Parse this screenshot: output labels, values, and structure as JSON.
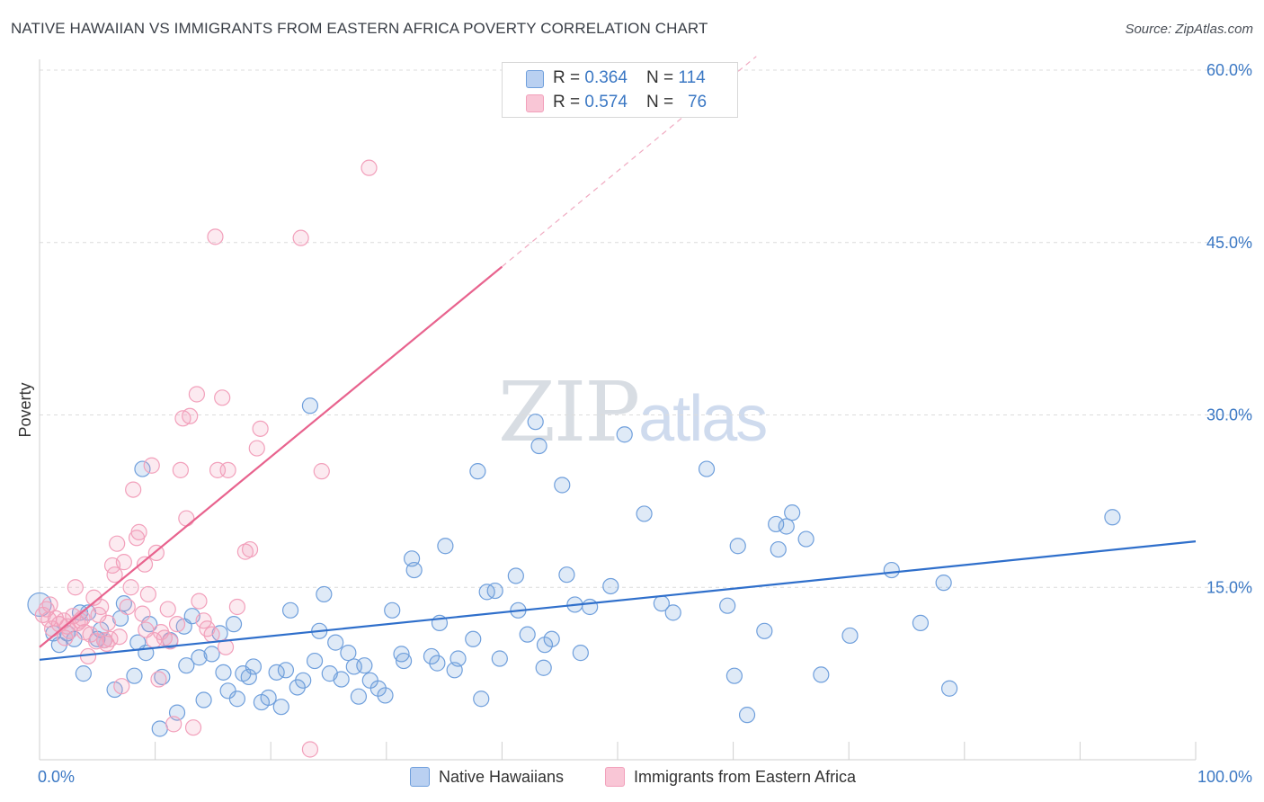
{
  "title": "NATIVE HAWAIIAN VS IMMIGRANTS FROM EASTERN AFRICA POVERTY CORRELATION CHART",
  "source": "Source: ZipAtlas.com",
  "watermark": {
    "zip": "ZIP",
    "atlas": "atlas"
  },
  "legend": {
    "rows": [
      {
        "r_label": "R = ",
        "r_value": "0.364",
        "n_label": "N = ",
        "n_value": "114"
      },
      {
        "r_label": "R = ",
        "r_value": "0.574",
        "n_label": "N = ",
        "n_value": "76"
      }
    ]
  },
  "chart_data": {
    "type": "scatter",
    "title": "NATIVE HAWAIIAN VS IMMIGRANTS FROM EASTERN AFRICA POVERTY CORRELATION CHART",
    "xlabel": "",
    "ylabel": "Poverty",
    "xlim": [
      0,
      100
    ],
    "ylim": [
      0,
      60
    ],
    "x_tick_labels": [
      "0.0%",
      "100.0%"
    ],
    "y_ticks": [
      15,
      30,
      45,
      60
    ],
    "y_tick_labels": [
      "15.0%",
      "30.0%",
      "45.0%",
      "60.0%"
    ],
    "legend_position": "bottom",
    "series": [
      {
        "name": "Native Hawaiians",
        "color": "#6f9fdc",
        "line_color": "#2f6fcb",
        "r": 0.364,
        "n": 114,
        "trend": {
          "x0": 0,
          "y0": 8.7,
          "x1": 100,
          "y1": 19.0
        },
        "points": [
          [
            0.0,
            13.5
          ],
          [
            1.2,
            11
          ],
          [
            1.7,
            10
          ],
          [
            2.4,
            11
          ],
          [
            3,
            10.5
          ],
          [
            3.5,
            12.8
          ],
          [
            3.8,
            7.5
          ],
          [
            4.2,
            12.8
          ],
          [
            5,
            10.5
          ],
          [
            5.3,
            11.3
          ],
          [
            5.6,
            10.4
          ],
          [
            6.5,
            6.1
          ],
          [
            7,
            12.3
          ],
          [
            7.3,
            13.6
          ],
          [
            8.2,
            7.3
          ],
          [
            8.5,
            10.2
          ],
          [
            8.9,
            25.3
          ],
          [
            9.2,
            9.3
          ],
          [
            9.5,
            11.8
          ],
          [
            10.4,
            2.7
          ],
          [
            10.6,
            7.2
          ],
          [
            11.3,
            10.4
          ],
          [
            11.9,
            4.1
          ],
          [
            12.5,
            11.6
          ],
          [
            12.7,
            8.2
          ],
          [
            13.2,
            12.5
          ],
          [
            13.8,
            8.9
          ],
          [
            14.2,
            5.2
          ],
          [
            14.9,
            9.2
          ],
          [
            15.6,
            11
          ],
          [
            15.9,
            7.6
          ],
          [
            16.3,
            6
          ],
          [
            16.8,
            11.8
          ],
          [
            17.1,
            5.3
          ],
          [
            17.6,
            7.5
          ],
          [
            18.1,
            7.2
          ],
          [
            18.5,
            8.1
          ],
          [
            19.2,
            5
          ],
          [
            19.8,
            5.4
          ],
          [
            20.5,
            7.6
          ],
          [
            20.9,
            4.6
          ],
          [
            21.3,
            7.8
          ],
          [
            21.7,
            13
          ],
          [
            22.3,
            6.3
          ],
          [
            22.8,
            6.9
          ],
          [
            23.4,
            30.8
          ],
          [
            23.8,
            8.6
          ],
          [
            24.2,
            11.2
          ],
          [
            24.6,
            14.4
          ],
          [
            25.1,
            7.5
          ],
          [
            25.6,
            10.2
          ],
          [
            26.1,
            7
          ],
          [
            26.7,
            9.3
          ],
          [
            27.2,
            8.1
          ],
          [
            27.6,
            5.5
          ],
          [
            28.1,
            8.2
          ],
          [
            28.6,
            6.9
          ],
          [
            29.3,
            6.2
          ],
          [
            29.9,
            5.6
          ],
          [
            30.5,
            13
          ],
          [
            31.3,
            9.2
          ],
          [
            31.5,
            8.6
          ],
          [
            32.2,
            17.5
          ],
          [
            32.4,
            16.5
          ],
          [
            33.9,
            9
          ],
          [
            34.4,
            8.4
          ],
          [
            34.6,
            11.9
          ],
          [
            35.1,
            18.6
          ],
          [
            35.9,
            7.8
          ],
          [
            36.2,
            8.8
          ],
          [
            37.5,
            10.5
          ],
          [
            37.9,
            25.1
          ],
          [
            38.2,
            5.3
          ],
          [
            38.7,
            14.6
          ],
          [
            39.4,
            14.7
          ],
          [
            39.8,
            8.8
          ],
          [
            41.2,
            16
          ],
          [
            41.4,
            13
          ],
          [
            42.2,
            10.9
          ],
          [
            42.9,
            29.4
          ],
          [
            43.2,
            27.3
          ],
          [
            43.6,
            8
          ],
          [
            43.7,
            10
          ],
          [
            44.3,
            10.5
          ],
          [
            45.2,
            23.9
          ],
          [
            45.6,
            16.1
          ],
          [
            46.3,
            13.5
          ],
          [
            46.8,
            9.3
          ],
          [
            47.6,
            13.3
          ],
          [
            49.4,
            15.1
          ],
          [
            50.6,
            28.3
          ],
          [
            52.3,
            21.4
          ],
          [
            53.8,
            13.6
          ],
          [
            54.8,
            12.8
          ],
          [
            57.7,
            25.3
          ],
          [
            59.5,
            13.4
          ],
          [
            60.1,
            7.3
          ],
          [
            60.4,
            18.6
          ],
          [
            61.2,
            3.9
          ],
          [
            62.7,
            11.2
          ],
          [
            63.7,
            20.5
          ],
          [
            63.9,
            18.3
          ],
          [
            64.6,
            20.3
          ],
          [
            65.1,
            21.5
          ],
          [
            66.3,
            19.2
          ],
          [
            67.6,
            7.4
          ],
          [
            70.1,
            10.8
          ],
          [
            73.7,
            16.5
          ],
          [
            76.2,
            11.9
          ],
          [
            78.2,
            15.4
          ],
          [
            78.7,
            6.2
          ],
          [
            92.8,
            21.1
          ]
        ]
      },
      {
        "name": "Immigrants from Eastern Africa",
        "color": "#f2a0bb",
        "line_color": "#e8638e",
        "r": 0.574,
        "n": 76,
        "trend": {
          "x0": 0,
          "y0": 9.8,
          "x1": 40,
          "y1": 42.9,
          "dashed_to_x": 62,
          "dashed_to_y": 61.2
        },
        "points": [
          [
            0.3,
            12.6
          ],
          [
            0.6,
            13.1
          ],
          [
            0.8,
            12.2
          ],
          [
            1.1,
            11.4
          ],
          [
            1.4,
            12.3
          ],
          [
            1.7,
            11.8
          ],
          [
            2.1,
            12.1
          ],
          [
            2.4,
            11.6
          ],
          [
            2.6,
            11.2
          ],
          [
            2.9,
            12.5
          ],
          [
            3.1,
            15
          ],
          [
            3.3,
            11.9
          ],
          [
            3.5,
            12.1
          ],
          [
            3.7,
            12.3
          ],
          [
            3.9,
            11.1
          ],
          [
            4.2,
            9
          ],
          [
            4.4,
            10.9
          ],
          [
            4.7,
            14.1
          ],
          [
            4.9,
            10.3
          ],
          [
            5.1,
            12.6
          ],
          [
            5.3,
            13.3
          ],
          [
            5.6,
            10.4
          ],
          [
            5.8,
            10.1
          ],
          [
            6.1,
            10.5
          ],
          [
            6.3,
            16.9
          ],
          [
            6.5,
            16.1
          ],
          [
            6.7,
            18.8
          ],
          [
            6.9,
            10.7
          ],
          [
            7.1,
            6.4
          ],
          [
            7.3,
            17.2
          ],
          [
            7.6,
            13.3
          ],
          [
            7.9,
            15
          ],
          [
            8.1,
            23.5
          ],
          [
            8.4,
            19.3
          ],
          [
            8.6,
            19.8
          ],
          [
            8.9,
            12.7
          ],
          [
            9.1,
            17
          ],
          [
            9.4,
            14.4
          ],
          [
            9.7,
            25.6
          ],
          [
            9.9,
            10.4
          ],
          [
            10.1,
            18
          ],
          [
            10.3,
            7
          ],
          [
            10.5,
            11.1
          ],
          [
            10.8,
            10.6
          ],
          [
            11.1,
            13.1
          ],
          [
            11.3,
            10.3
          ],
          [
            11.6,
            3.1
          ],
          [
            11.9,
            11.8
          ],
          [
            12.2,
            25.2
          ],
          [
            12.4,
            29.7
          ],
          [
            12.7,
            21
          ],
          [
            13,
            29.9
          ],
          [
            13.3,
            2.8
          ],
          [
            13.6,
            31.8
          ],
          [
            14.2,
            12.1
          ],
          [
            14.5,
            11.4
          ],
          [
            14.9,
            10.9
          ],
          [
            15.2,
            45.5
          ],
          [
            15.4,
            25.2
          ],
          [
            15.8,
            31.5
          ],
          [
            16.1,
            9.8
          ],
          [
            16.3,
            25.2
          ],
          [
            17.1,
            13.3
          ],
          [
            17.8,
            18.1
          ],
          [
            18.2,
            18.3
          ],
          [
            18.8,
            27.1
          ],
          [
            19.1,
            28.8
          ],
          [
            22.6,
            45.4
          ],
          [
            23.4,
            0.9
          ],
          [
            24.4,
            25.1
          ],
          [
            28.5,
            51.5
          ],
          [
            0.9,
            13.5
          ],
          [
            2.2,
            10.6
          ],
          [
            5.9,
            11.9
          ],
          [
            9.2,
            11.3
          ],
          [
            13.8,
            13.8
          ]
        ]
      }
    ]
  }
}
